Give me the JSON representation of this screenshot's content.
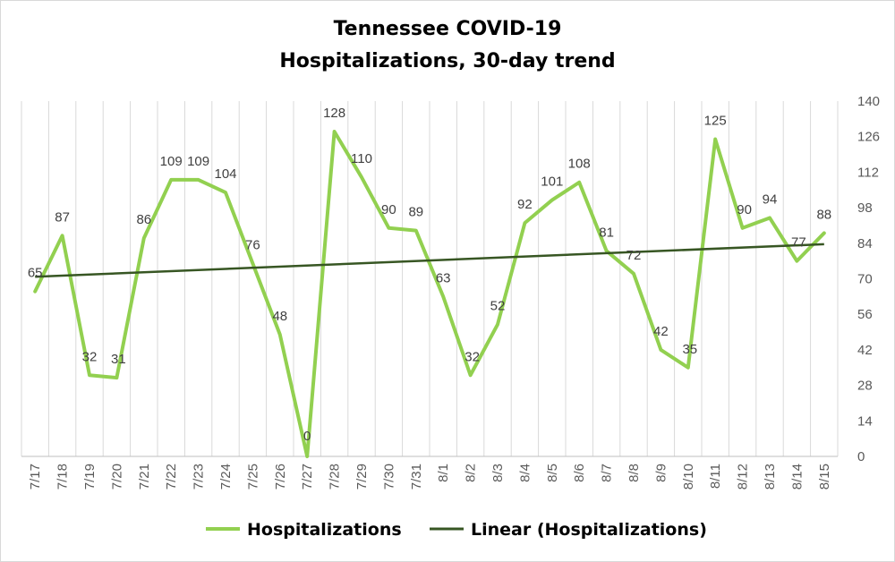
{
  "chart_data": {
    "type": "line",
    "title_line1": "Tennessee COVID-19",
    "title_line2": "Hospitalizations, 30-day trend",
    "categories": [
      "7/17",
      "7/18",
      "7/19",
      "7/20",
      "7/21",
      "7/22",
      "7/23",
      "7/24",
      "7/25",
      "7/26",
      "7/27",
      "7/28",
      "7/29",
      "7/30",
      "7/31",
      "8/1",
      "8/2",
      "8/3",
      "8/4",
      "8/5",
      "8/6",
      "8/7",
      "8/8",
      "8/9",
      "8/10",
      "8/11",
      "8/12",
      "8/13",
      "8/14",
      "8/15"
    ],
    "series": [
      {
        "name": "Hospitalizations",
        "color": "#92d050",
        "values": [
          65,
          87,
          32,
          31,
          86,
          109,
          109,
          104,
          76,
          48,
          0,
          128,
          110,
          90,
          89,
          63,
          32,
          52,
          92,
          101,
          108,
          81,
          72,
          42,
          35,
          125,
          90,
          94,
          77,
          88
        ]
      }
    ],
    "trendline": {
      "name": "Linear (Hospitalizations)",
      "color": "#375623",
      "type": "linear"
    },
    "yaxis": {
      "position": "right",
      "min": 0,
      "max": 140,
      "step": 14
    },
    "ytick_labels": [
      "0",
      "14",
      "28",
      "42",
      "56",
      "70",
      "84",
      "98",
      "112",
      "126",
      "140"
    ],
    "grid": "vertical",
    "legend_position": "bottom"
  }
}
